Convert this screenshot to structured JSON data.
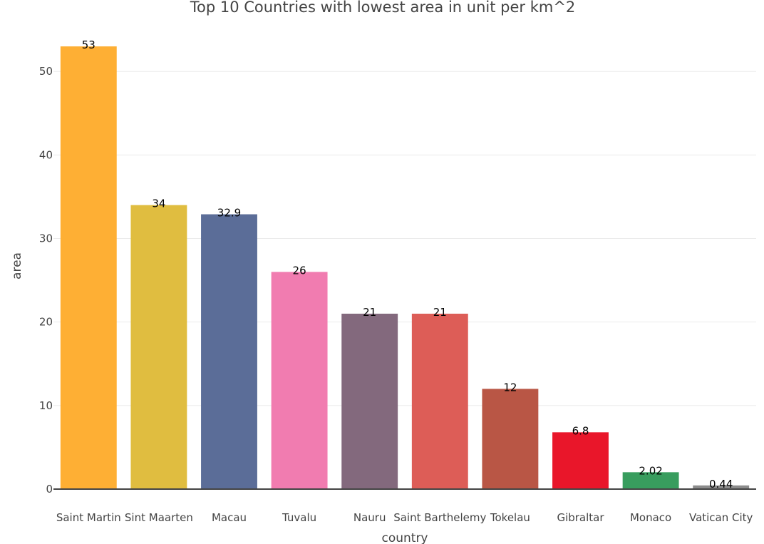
{
  "chart_data": {
    "type": "bar",
    "title": "Top 10 Countries with lowest area in unit per km^2",
    "xlabel": "country",
    "ylabel": "area",
    "ylim": [
      0,
      54.2
    ],
    "yticks": [
      0,
      10,
      20,
      30,
      40,
      50
    ],
    "grid": true,
    "categories": [
      "Saint Martin",
      "Sint Maarten",
      "Macau",
      "Tuvalu",
      "Nauru",
      "Saint Barthelemy",
      "Tokelau",
      "Gibraltar",
      "Monaco",
      "Vatican City"
    ],
    "values": [
      53,
      34,
      32.9,
      26,
      21,
      21,
      12,
      6.8,
      2.02,
      0.44
    ],
    "value_labels": [
      "53",
      "34",
      "32.9",
      "26",
      "21",
      "21",
      "12",
      "6.8",
      "2.02",
      "0.44"
    ],
    "colors": [
      "#FEAF34",
      "#E0BD40",
      "#5B6D98",
      "#F17CB0",
      "#83697D",
      "#DD5D57",
      "#B95645",
      "#E9162A",
      "#389D5E",
      "#8C8C8C"
    ]
  }
}
